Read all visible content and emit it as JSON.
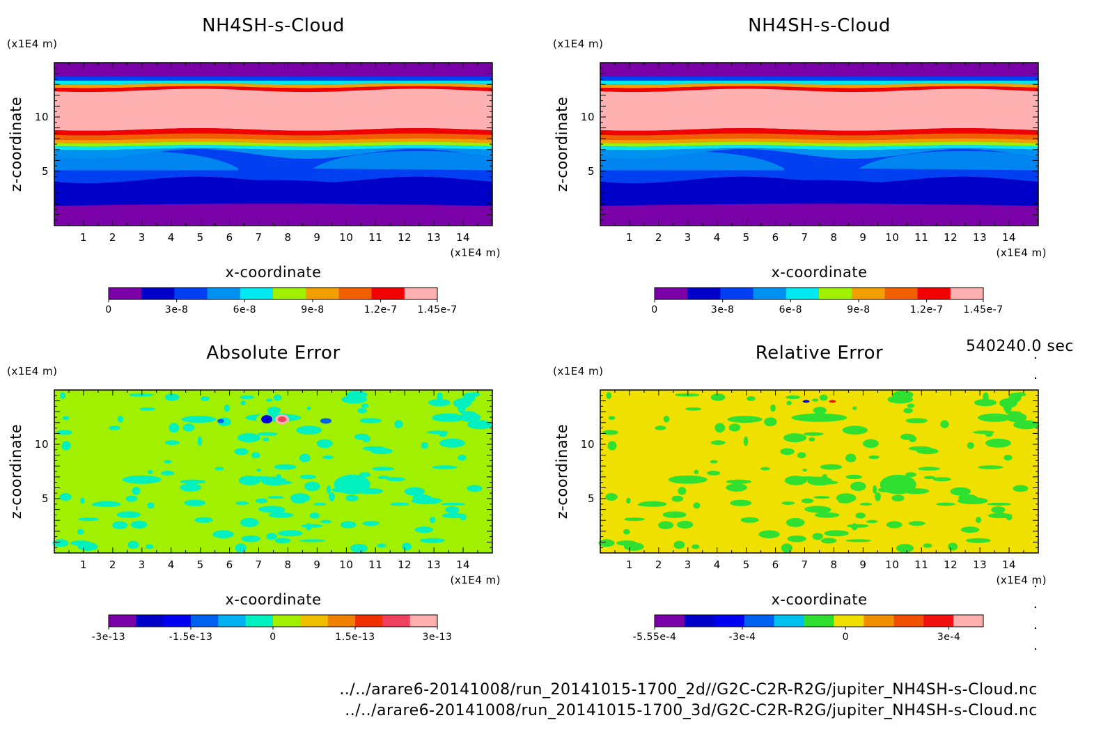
{
  "time_label": "540240.0 sec",
  "file_paths": [
    "../../arare6-20141008/run_20141015-1700_2d//G2C-C2R-R2G/jupiter_NH4SH-s-Cloud.nc",
    "../../arare6-20141008/run_20141015-1700_3d/G2C-C2R-R2G/jupiter_NH4SH-s-Cloud.nc"
  ],
  "chart_data": [
    {
      "type": "heatmap",
      "id": "panel-2d",
      "title": "NH4SH-s-Cloud",
      "xlabel": "x-coordinate",
      "ylabel": "z-coordinate",
      "x_unit": "(x1E4 m)",
      "z_unit": "(x1E4 m)",
      "xlim": [
        0,
        15
      ],
      "zlim": [
        0,
        15
      ],
      "x_ticks": [
        "1",
        "2",
        "3",
        "4",
        "5",
        "6",
        "7",
        "8",
        "9",
        "10",
        "11",
        "12",
        "13",
        "14"
      ],
      "z_ticks": [
        "5",
        "10"
      ],
      "colorbar": {
        "range": [
          0,
          1.45e-07
        ],
        "colors": [
          "#7a00a8",
          "#0000c8",
          "#0040f0",
          "#0090f0",
          "#00e8f0",
          "#a0f000",
          "#f0a000",
          "#f06000",
          "#f00000",
          "#ffb0b0"
        ],
        "tick_labels": [
          "0",
          "3e-8",
          "6e-8",
          "9e-8",
          "1.2e-7",
          "1.45e-7"
        ]
      }
    },
    {
      "type": "heatmap",
      "id": "panel-3d",
      "title": "NH4SH-s-Cloud",
      "xlabel": "x-coordinate",
      "ylabel": "z-coordinate",
      "x_unit": "(x1E4 m)",
      "z_unit": "(x1E4 m)",
      "xlim": [
        0,
        15
      ],
      "zlim": [
        0,
        15
      ],
      "x_ticks": [
        "1",
        "2",
        "3",
        "4",
        "5",
        "6",
        "7",
        "8",
        "9",
        "10",
        "11",
        "12",
        "13",
        "14"
      ],
      "z_ticks": [
        "5",
        "10"
      ],
      "colorbar": {
        "range": [
          0,
          1.45e-07
        ],
        "colors": [
          "#7a00a8",
          "#0000c8",
          "#0040f0",
          "#0090f0",
          "#00e8f0",
          "#a0f000",
          "#f0a000",
          "#f06000",
          "#f00000",
          "#ffb0b0"
        ],
        "tick_labels": [
          "0",
          "3e-8",
          "6e-8",
          "9e-8",
          "1.2e-7",
          "1.45e-7"
        ]
      }
    },
    {
      "type": "heatmap",
      "id": "panel-abs",
      "title": "Absolute Error",
      "xlabel": "x-coordinate",
      "ylabel": "z-coordinate",
      "x_unit": "(x1E4 m)",
      "z_unit": "(x1E4 m)",
      "xlim": [
        0,
        15
      ],
      "zlim": [
        0,
        15
      ],
      "x_ticks": [
        "1",
        "2",
        "3",
        "4",
        "5",
        "6",
        "7",
        "8",
        "9",
        "10",
        "11",
        "12",
        "13",
        "14"
      ],
      "z_ticks": [
        "5",
        "10"
      ],
      "colorbar": {
        "range": [
          -3e-13,
          3e-13
        ],
        "colors": [
          "#7a00a8",
          "#0000c8",
          "#0000f0",
          "#0060f0",
          "#00b0f0",
          "#00f0c0",
          "#a0f000",
          "#f0c000",
          "#f08000",
          "#f03000",
          "#f04060",
          "#ffb0b0"
        ],
        "tick_labels": [
          "-3e-13",
          "-1.5e-13",
          "0",
          "1.5e-13",
          "3e-13"
        ]
      }
    },
    {
      "type": "heatmap",
      "id": "panel-rel",
      "title": "Relative Error",
      "xlabel": "x-coordinate",
      "ylabel": "z-coordinate",
      "x_unit": "(x1E4 m)",
      "z_unit": "(x1E4 m)",
      "xlim": [
        0,
        15
      ],
      "zlim": [
        0,
        15
      ],
      "x_ticks": [
        "1",
        "2",
        "3",
        "4",
        "5",
        "6",
        "7",
        "8",
        "9",
        "10",
        "11",
        "12",
        "13",
        "14"
      ],
      "z_ticks": [
        "5",
        "10"
      ],
      "colorbar": {
        "range": [
          -0.000555,
          0.0004
        ],
        "colors": [
          "#7a00a8",
          "#0000c8",
          "#0000f0",
          "#0060f0",
          "#00c0f0",
          "#30e030",
          "#f0e000",
          "#f09000",
          "#f05000",
          "#f01010",
          "#ffb0b0"
        ],
        "tick_labels": [
          "-5.55e-4",
          "-3e-4",
          "0",
          "3e-4"
        ]
      }
    }
  ]
}
